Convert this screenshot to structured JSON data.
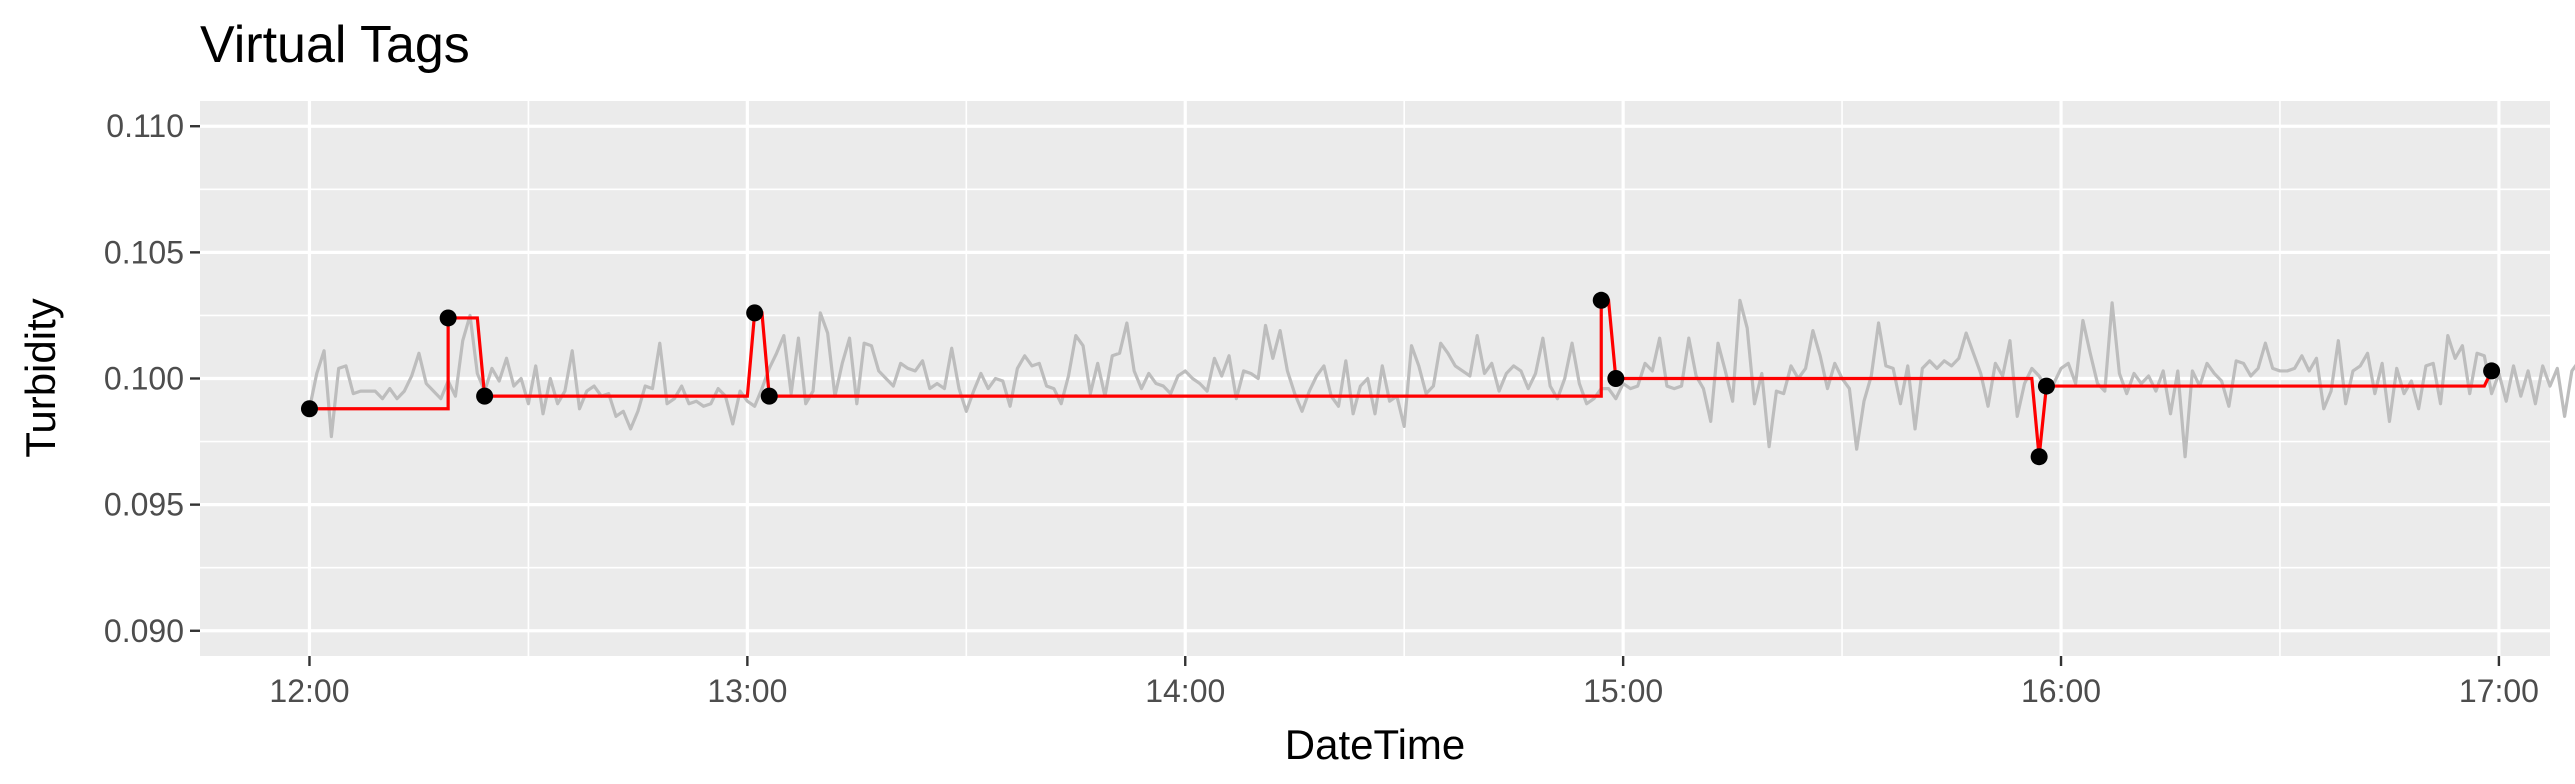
{
  "chart_data": {
    "type": "line",
    "title": "Virtual Tags",
    "xlabel": "DateTime",
    "ylabel": "Turbidity",
    "xlim": [
      "11:45",
      "17:07"
    ],
    "ylim": [
      0.089,
      0.111
    ],
    "x_ticks": [
      "12:00",
      "13:00",
      "14:00",
      "15:00",
      "16:00",
      "17:00"
    ],
    "y_ticks": [
      "0.090",
      "0.095",
      "0.100",
      "0.105",
      "0.110"
    ],
    "grid": true,
    "legend": "none",
    "colors": {
      "panel": "#ebebeb",
      "grid": "#ffffff",
      "raw_line": "#bdbdbd",
      "step_line": "#ff0000",
      "points": "#000000"
    },
    "series": [
      {
        "style": "raw",
        "interval_minutes": 1,
        "start": "12:00",
        "values": [
          0.0988,
          0.1002,
          0.1011,
          0.0977,
          0.1004,
          0.1005,
          0.0994,
          0.0995,
          0.0995,
          0.0995,
          0.0992,
          0.0996,
          0.0992,
          0.0995,
          0.1001,
          0.101,
          0.0998,
          0.0995,
          0.0992,
          0.0999,
          0.0993,
          0.1015,
          0.1025,
          0.1002,
          0.0995,
          0.1004,
          0.0999,
          0.1008,
          0.0997,
          0.1,
          0.099,
          0.1005,
          0.0986,
          0.1,
          0.099,
          0.0995,
          0.1011,
          0.0988,
          0.0995,
          0.0997,
          0.0993,
          0.0994,
          0.0985,
          0.0987,
          0.098,
          0.0987,
          0.0997,
          0.0996,
          0.1014,
          0.099,
          0.0992,
          0.0997,
          0.099,
          0.0991,
          0.0989,
          0.099,
          0.0996,
          0.0993,
          0.0982,
          0.0995,
          0.0991,
          0.0989,
          0.0996,
          0.1004,
          0.101,
          0.1017,
          0.0994,
          0.1016,
          0.099,
          0.0995,
          0.1026,
          0.1018,
          0.0993,
          0.1006,
          0.1016,
          0.099,
          0.1014,
          0.1013,
          0.1003,
          0.1,
          0.0997,
          0.1006,
          0.1004,
          0.1003,
          0.1007,
          0.0996,
          0.0998,
          0.0996,
          0.1012,
          0.0996,
          0.0987,
          0.0995,
          0.1002,
          0.0996,
          0.1,
          0.0999,
          0.0989,
          0.1004,
          0.1009,
          0.1005,
          0.1006,
          0.0997,
          0.0996,
          0.099,
          0.1001,
          0.1017,
          0.1013,
          0.0994,
          0.1006,
          0.0993,
          0.1009,
          0.101,
          0.1022,
          0.1003,
          0.0996,
          0.1002,
          0.0998,
          0.0997,
          0.0994,
          0.1001,
          0.1003,
          0.1,
          0.0998,
          0.0995,
          0.1008,
          0.1001,
          0.1009,
          0.0992,
          0.1003,
          0.1002,
          0.1,
          0.1021,
          0.1008,
          0.1019,
          0.1003,
          0.0994,
          0.0987,
          0.0995,
          0.1001,
          0.1005,
          0.0993,
          0.0989,
          0.1007,
          0.0986,
          0.0997,
          0.1,
          0.0986,
          0.1005,
          0.0991,
          0.0993,
          0.0981,
          0.1013,
          0.1005,
          0.0994,
          0.0997,
          0.1014,
          0.101,
          0.1005,
          0.1003,
          0.1001,
          0.1017,
          0.1002,
          0.1006,
          0.0995,
          0.1002,
          0.1005,
          0.1003,
          0.0996,
          0.1002,
          0.1016,
          0.0997,
          0.0992,
          0.1,
          0.1014,
          0.0998,
          0.099,
          0.0992,
          0.0996,
          0.0996,
          0.0992,
          0.0998,
          0.0996,
          0.0997,
          0.1006,
          0.1003,
          0.1016,
          0.0997,
          0.0996,
          0.0997,
          0.1016,
          0.1001,
          0.0996,
          0.0983,
          0.1014,
          0.1003,
          0.0991,
          0.1031,
          0.102,
          0.099,
          0.1002,
          0.0973,
          0.0995,
          0.0994,
          0.1005,
          0.1,
          0.1004,
          0.1019,
          0.1009,
          0.0996,
          0.1006,
          0.1,
          0.0996,
          0.0972,
          0.0991,
          0.1001,
          0.1022,
          0.1005,
          0.1004,
          0.099,
          0.1005,
          0.098,
          0.1004,
          0.1007,
          0.1004,
          0.1007,
          0.1005,
          0.1008,
          0.1018,
          0.101,
          0.1002,
          0.0989,
          0.1006,
          0.1001,
          0.1015,
          0.0985,
          0.0998,
          0.1004,
          0.1001,
          0.0996,
          0.0998,
          0.1004,
          0.1006,
          0.0998,
          0.1023,
          0.101,
          0.0998,
          0.0995,
          0.103,
          0.1002,
          0.0994,
          0.1002,
          0.0998,
          0.1001,
          0.0995,
          0.1003,
          0.0986,
          0.1003,
          0.0969,
          0.1003,
          0.0997,
          0.1006,
          0.1002,
          0.0999,
          0.0989,
          0.1007,
          0.1006,
          0.1001,
          0.1004,
          0.1014,
          0.1004,
          0.1003,
          0.1003,
          0.1004,
          0.1009,
          0.1003,
          0.1008,
          0.0988,
          0.0995,
          0.1015,
          0.099,
          0.1003,
          0.1005,
          0.101,
          0.0994,
          0.1006,
          0.0983,
          0.1004,
          0.0994,
          0.0999,
          0.0988,
          0.1005,
          0.1006,
          0.099,
          0.1017,
          0.1008,
          0.1013,
          0.0994,
          0.101,
          0.1009,
          0.0994,
          0.1002,
          0.0991,
          0.1005,
          0.0993,
          0.1003,
          0.099,
          0.1005,
          0.0997,
          0.1004,
          0.0985,
          0.1003,
          0.1007,
          0.1009,
          0.1,
          0.0983,
          0.0999,
          0.1016,
          0.1017,
          0.0989,
          0.0997,
          0.0992,
          0.1004
        ]
      },
      {
        "style": "step",
        "points": [
          {
            "x": "12:00",
            "y": 0.0988
          },
          {
            "x": "12:19",
            "y": 0.0988
          },
          {
            "x": "12:19",
            "y": 0.1024
          },
          {
            "x": "12:23",
            "y": 0.1024
          },
          {
            "x": "12:24",
            "y": 0.0993
          },
          {
            "x": "13:00",
            "y": 0.0993
          },
          {
            "x": "13:01",
            "y": 0.1026
          },
          {
            "x": "13:02",
            "y": 0.1026
          },
          {
            "x": "13:03",
            "y": 0.0993
          },
          {
            "x": "14:57",
            "y": 0.0993
          },
          {
            "x": "14:57",
            "y": 0.1031
          },
          {
            "x": "14:58",
            "y": 0.1031
          },
          {
            "x": "14:59",
            "y": 0.1
          },
          {
            "x": "15:56",
            "y": 0.1
          },
          {
            "x": "15:56",
            "y": 0.1
          },
          {
            "x": "15:57",
            "y": 0.0969
          },
          {
            "x": "15:58",
            "y": 0.0997
          },
          {
            "x": "16:58",
            "y": 0.0997
          },
          {
            "x": "16:59",
            "y": 0.1003
          }
        ]
      },
      {
        "style": "points",
        "points": [
          {
            "x": "12:00",
            "y": 0.0988
          },
          {
            "x": "12:19",
            "y": 0.1024
          },
          {
            "x": "12:24",
            "y": 0.0993
          },
          {
            "x": "13:01",
            "y": 0.1026
          },
          {
            "x": "13:03",
            "y": 0.0993
          },
          {
            "x": "14:57",
            "y": 0.1031
          },
          {
            "x": "14:59",
            "y": 0.1
          },
          {
            "x": "15:57",
            "y": 0.0969
          },
          {
            "x": "15:58",
            "y": 0.0997
          },
          {
            "x": "16:59",
            "y": 0.1003
          }
        ]
      }
    ]
  }
}
